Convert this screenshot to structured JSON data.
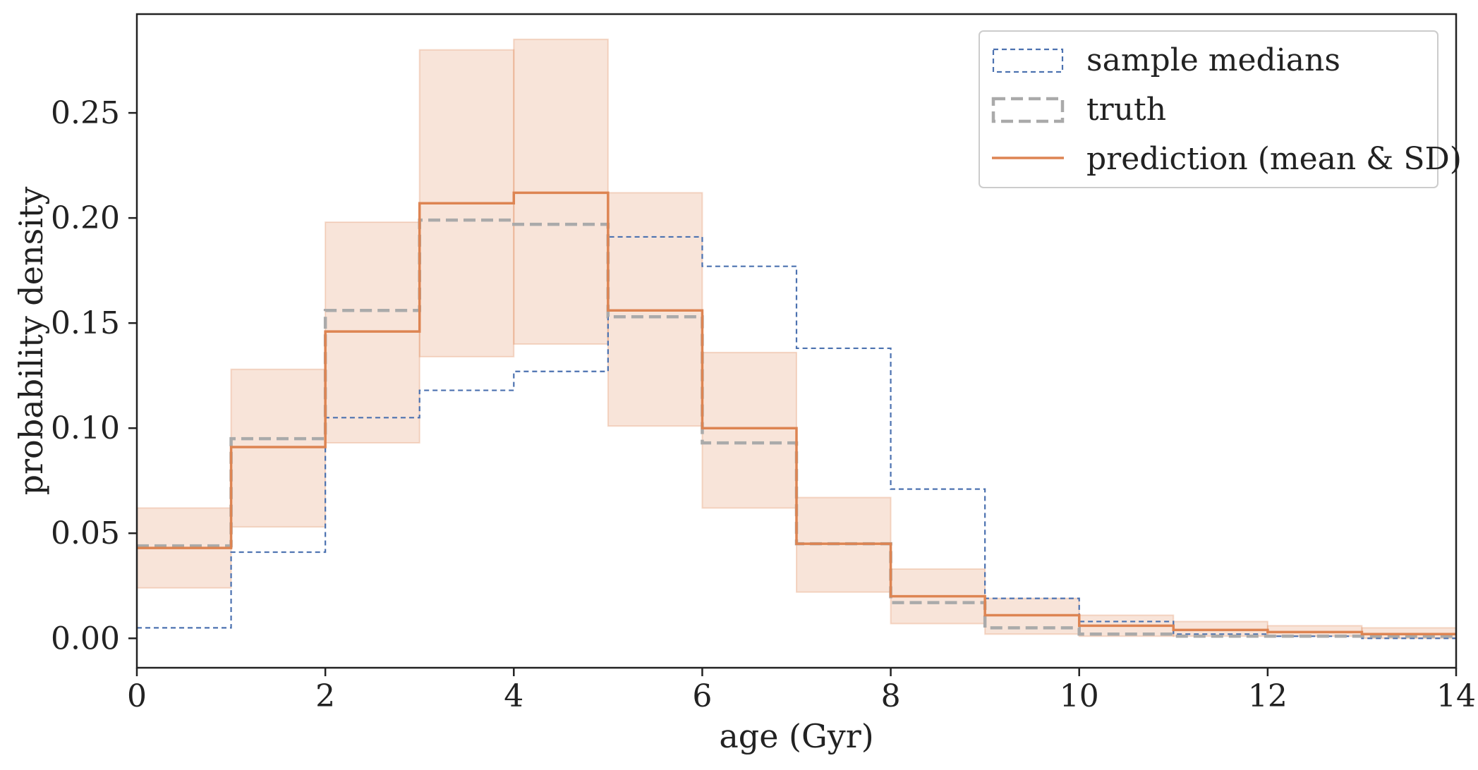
{
  "chart_data": {
    "type": "step",
    "title": "",
    "xlabel": "age (Gyr)",
    "ylabel": "probability density",
    "xlim": [
      0,
      14
    ],
    "ylim": [
      -0.014,
      0.297
    ],
    "xticks": [
      "0",
      "2",
      "4",
      "6",
      "8",
      "10",
      "12",
      "14"
    ],
    "yticks": [
      "0.00",
      "0.05",
      "0.10",
      "0.15",
      "0.20",
      "0.25"
    ],
    "bin_edges": [
      0,
      1,
      2,
      3,
      4,
      5,
      6,
      7,
      8,
      9,
      10,
      11,
      12,
      13,
      14
    ],
    "legend_position": "top-right",
    "series": [
      {
        "name": "sample medians",
        "style": "dashed-thin",
        "color": "#4c72b0",
        "values": [
          0.005,
          0.041,
          0.105,
          0.118,
          0.127,
          0.191,
          0.177,
          0.138,
          0.071,
          0.019,
          0.008,
          0.002,
          0.001,
          0.0
        ]
      },
      {
        "name": "truth",
        "style": "dashed-thick",
        "color": "#aaaaaa",
        "values": [
          0.044,
          0.095,
          0.156,
          0.199,
          0.197,
          0.153,
          0.093,
          0.045,
          0.017,
          0.005,
          0.002,
          0.001,
          0.001,
          0.001
        ]
      },
      {
        "name": "prediction (mean & SD)",
        "style": "solid",
        "color": "#dd8452",
        "values": [
          0.043,
          0.091,
          0.146,
          0.207,
          0.212,
          0.156,
          0.1,
          0.045,
          0.02,
          0.011,
          0.006,
          0.004,
          0.003,
          0.002
        ],
        "lower": [
          0.024,
          0.053,
          0.093,
          0.134,
          0.14,
          0.101,
          0.062,
          0.022,
          0.007,
          0.002,
          0.001,
          0.001,
          0.001,
          0.0
        ],
        "upper": [
          0.062,
          0.128,
          0.198,
          0.28,
          0.285,
          0.212,
          0.136,
          0.067,
          0.033,
          0.019,
          0.011,
          0.008,
          0.006,
          0.005
        ]
      }
    ]
  }
}
